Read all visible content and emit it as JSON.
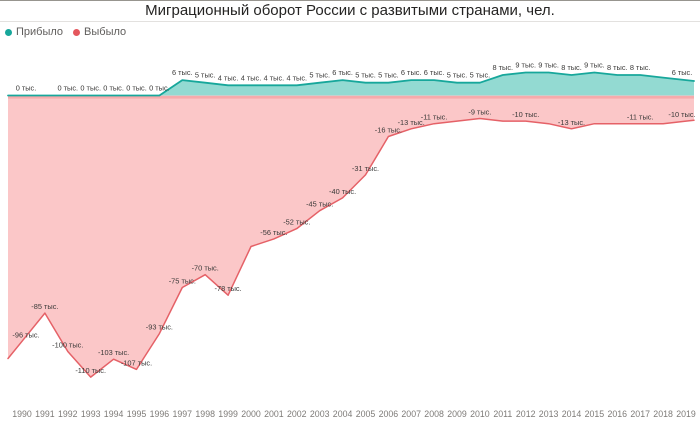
{
  "title": "Миграционный оборот России с развитыми странами, чел.",
  "legend": [
    {
      "label": "Прибыло",
      "color": "#17a79b"
    },
    {
      "label": "Выбыло",
      "color": "#e4575d"
    }
  ],
  "chart_data": {
    "type": "area",
    "title": "Миграционный оборот России с развитыми странами, чел.",
    "unit": "тыс. чел.",
    "x": [
      "1990",
      "1991",
      "1992",
      "1993",
      "1994",
      "1995",
      "1996",
      "1997",
      "1998",
      "1999",
      "2000",
      "2001",
      "2002",
      "2003",
      "2004",
      "2005",
      "2006",
      "2007",
      "2008",
      "2009",
      "2010",
      "2011",
      "2012",
      "2013",
      "2014",
      "2015",
      "2016",
      "2017",
      "2018",
      "2019"
    ],
    "ylim": [
      -120,
      15
    ],
    "baseline": 0,
    "grid": false,
    "legend_position": "top-left",
    "axis_label_color": "#7e7b78",
    "data_label_color": "#3b3a39",
    "baseline_strip_color": "#f6abac",
    "series": [
      {
        "name": "Прибыло",
        "key": "arrived",
        "line_color": "#17a79b",
        "fill_color": "#93dad2",
        "values": [
          0,
          0,
          0,
          0,
          0,
          0,
          0,
          6,
          5,
          4,
          4,
          4,
          4,
          5,
          6,
          5,
          5,
          6,
          6,
          5,
          5,
          8,
          9,
          9,
          8,
          9,
          8,
          8,
          7,
          6
        ],
        "labels": [
          "0 тыс.",
          null,
          "0 тыс.",
          "0 тыс.",
          "0 тыс.",
          "0 тыс.",
          "0 тыс.",
          "6 тыс.",
          "5 тыс.",
          "4 тыс.",
          "4 тыс.",
          "4 тыс.",
          "4 тыс.",
          "5 тыс.",
          "6 тыс.",
          "5 тыс.",
          "5 тыс.",
          "6 тыс.",
          "6 тыс.",
          "5 тыс.",
          "5 тыс.",
          "8 тыс.",
          "9 тыс.",
          "9 тыс.",
          "8 тыс.",
          "9 тыс.",
          "8 тыс.",
          "8 тыс.",
          null,
          "6 тыс."
        ]
      },
      {
        "name": "Выбыло",
        "key": "departed",
        "line_color": "#e56167",
        "fill_color": "#fbc7c8",
        "values": [
          -96,
          -85,
          -100,
          -110,
          -103,
          -107,
          -93,
          -75,
          -70,
          -78,
          -59,
          -56,
          -52,
          -45,
          -40,
          -31,
          -16,
          -13,
          -11,
          -10,
          -9,
          -10,
          -10,
          -11,
          -13,
          -11,
          -11,
          -11,
          -11,
          -10
        ],
        "labels": [
          "-96 тыс.",
          "-85 тыс.",
          "-100 тыс.",
          "-110 тыс.",
          "-103 тыс.",
          "-107 тыс.",
          "-93 тыс.",
          "-75 тыс.",
          "-70 тыс.",
          "-78 тыс.",
          null,
          "-56 тыс.",
          "-52 тыс.",
          "-45 тыс.",
          "-40 тыс.",
          "-31 тыс.",
          "-16 тыс.",
          "-13 тыс.",
          "-11 тыс.",
          null,
          "-9 тыс.",
          null,
          "-10 тыс.",
          null,
          "-13 тыс.",
          null,
          null,
          "-11 тыс.",
          null,
          "-10 тыс."
        ]
      }
    ]
  }
}
